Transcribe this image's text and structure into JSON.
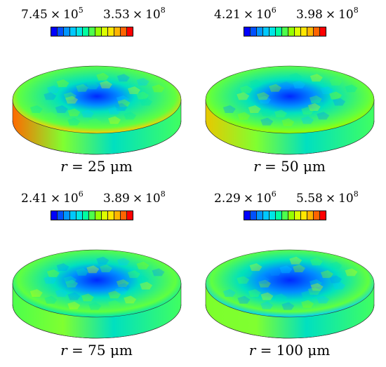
{
  "colormap": [
    "#0000ff",
    "#0050ff",
    "#0096ff",
    "#00c8ff",
    "#00e6e6",
    "#00ffa0",
    "#4cff4c",
    "#96ff00",
    "#dcff00",
    "#ffe600",
    "#ffb400",
    "#ff6400",
    "#ff0000"
  ],
  "panels": [
    {
      "min_mant": "7.45",
      "min_exp": "5",
      "max_mant": "3.53",
      "max_exp": "8",
      "var": "r",
      "eq": "= 25",
      "unit": "μm"
    },
    {
      "min_mant": "4.21",
      "min_exp": "6",
      "max_mant": "3.98",
      "max_exp": "8",
      "var": "r",
      "eq": "= 50",
      "unit": "μm"
    },
    {
      "min_mant": "2.41",
      "min_exp": "6",
      "max_mant": "3.89",
      "max_exp": "8",
      "var": "r",
      "eq": "= 75",
      "unit": "μm"
    },
    {
      "min_mant": "2.29",
      "min_exp": "6",
      "max_mant": "5.58",
      "max_exp": "8",
      "var": "r",
      "eq": "= 100",
      "unit": "μm"
    }
  ],
  "times_sign": "×",
  "base": "10"
}
